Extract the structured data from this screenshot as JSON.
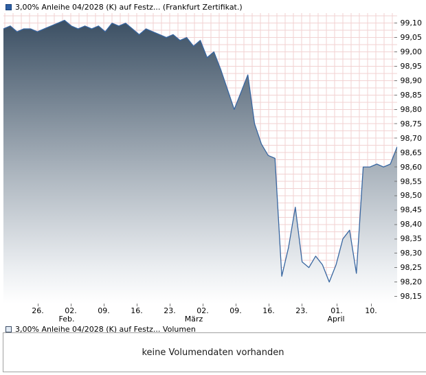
{
  "legend": {
    "price": "3,00% Anleihe 04/2028 (K) auf Festz... (Frankfurt Zertifikat.)",
    "price_color": "#2e5fa3",
    "volume": "3,00% Anleihe 04/2028 (K) auf Festz... Volumen"
  },
  "volume": {
    "message": "keine Volumendaten vorhanden"
  },
  "chart_data": {
    "type": "area",
    "title": "3,00% Anleihe 04/2028 (K) auf Festz... (Frankfurt Zertifikat.)",
    "ylabel": "",
    "xlabel": "",
    "ylim": [
      98.125,
      99.135
    ],
    "grid": true,
    "legend_position": "top-left",
    "colors": {
      "line": "#3866a0",
      "fill_top": "#3b4f63",
      "fill_mid": "#aeb7c0",
      "fill_low": "#eceff2",
      "fill_bottom": "#ffffff",
      "grid": "#f2d2d2",
      "tick": "#777777"
    },
    "y_ticks": [
      "99,10",
      "99,05",
      "99,00",
      "98,95",
      "98,90",
      "98,85",
      "98,80",
      "98,75",
      "98,70",
      "98,65",
      "98,60",
      "98,55",
      "98,50",
      "98,45",
      "98,40",
      "98,35",
      "98,30",
      "98,25",
      "98,20",
      "98,15"
    ],
    "x_ticks": [
      {
        "label": "26.",
        "pos": 0.0873
      },
      {
        "label": "02.",
        "pos": 0.171
      },
      {
        "label": "09.",
        "pos": 0.2548
      },
      {
        "label": "16.",
        "pos": 0.3386
      },
      {
        "label": "23.",
        "pos": 0.4223
      },
      {
        "label": "02.",
        "pos": 0.5061
      },
      {
        "label": "09.",
        "pos": 0.5899
      },
      {
        "label": "16.",
        "pos": 0.6736
      },
      {
        "label": "23.",
        "pos": 0.7574
      },
      {
        "label": "01.",
        "pos": 0.8464
      },
      {
        "label": "10.",
        "pos": 0.9337
      }
    ],
    "month_labels": [
      {
        "label": "Feb.",
        "pos": 0.1606
      },
      {
        "label": "März",
        "pos": 0.4834
      },
      {
        "label": "April",
        "pos": 0.8447
      }
    ],
    "series": [
      {
        "name": "3,00% Anleihe 04/2028 (K) auf Festz...",
        "points": [
          [
            "20.01",
            99.08
          ],
          [
            "23.01",
            99.09
          ],
          [
            "24.01",
            99.07
          ],
          [
            "25.01",
            99.08
          ],
          [
            "26.01",
            99.08
          ],
          [
            "27.01",
            99.07
          ],
          [
            "30.01",
            99.08
          ],
          [
            "31.01",
            99.09
          ],
          [
            "01.02",
            99.1
          ],
          [
            "02.02",
            99.11
          ],
          [
            "03.02",
            99.09
          ],
          [
            "06.02",
            99.08
          ],
          [
            "07.02",
            99.09
          ],
          [
            "08.02",
            99.08
          ],
          [
            "09.02",
            99.09
          ],
          [
            "10.02",
            99.07
          ],
          [
            "13.02",
            99.1
          ],
          [
            "14.02",
            99.09
          ],
          [
            "15.02",
            99.1
          ],
          [
            "16.02",
            99.08
          ],
          [
            "17.02",
            99.06
          ],
          [
            "20.02",
            99.08
          ],
          [
            "21.02",
            99.07
          ],
          [
            "22.02",
            99.06
          ],
          [
            "23.02",
            99.05
          ],
          [
            "24.02",
            99.06
          ],
          [
            "27.02",
            99.04
          ],
          [
            "28.02",
            99.05
          ],
          [
            "01.03",
            99.02
          ],
          [
            "02.03",
            99.04
          ],
          [
            "03.03",
            98.98
          ],
          [
            "06.03",
            99.0
          ],
          [
            "07.03",
            98.94
          ],
          [
            "08.03",
            98.87
          ],
          [
            "09.03",
            98.8
          ],
          [
            "10.03",
            98.86
          ],
          [
            "13.03",
            98.92
          ],
          [
            "14.03",
            98.75
          ],
          [
            "15.03",
            98.68
          ],
          [
            "16.03",
            98.64
          ],
          [
            "17.03",
            98.63
          ],
          [
            "20.03",
            98.22
          ],
          [
            "21.03",
            98.32
          ],
          [
            "22.03",
            98.46
          ],
          [
            "23.03",
            98.27
          ],
          [
            "24.03",
            98.25
          ],
          [
            "27.03",
            98.29
          ],
          [
            "28.03",
            98.26
          ],
          [
            "29.03",
            98.2
          ],
          [
            "30.03",
            98.26
          ],
          [
            "31.03",
            98.35
          ],
          [
            "03.04",
            98.38
          ],
          [
            "04.04",
            98.23
          ],
          [
            "05.04",
            98.6
          ],
          [
            "06.04",
            98.6
          ],
          [
            "11.04",
            98.61
          ],
          [
            "12.04",
            98.6
          ],
          [
            "13.04",
            98.61
          ],
          [
            "14.04",
            98.67
          ]
        ]
      }
    ]
  }
}
